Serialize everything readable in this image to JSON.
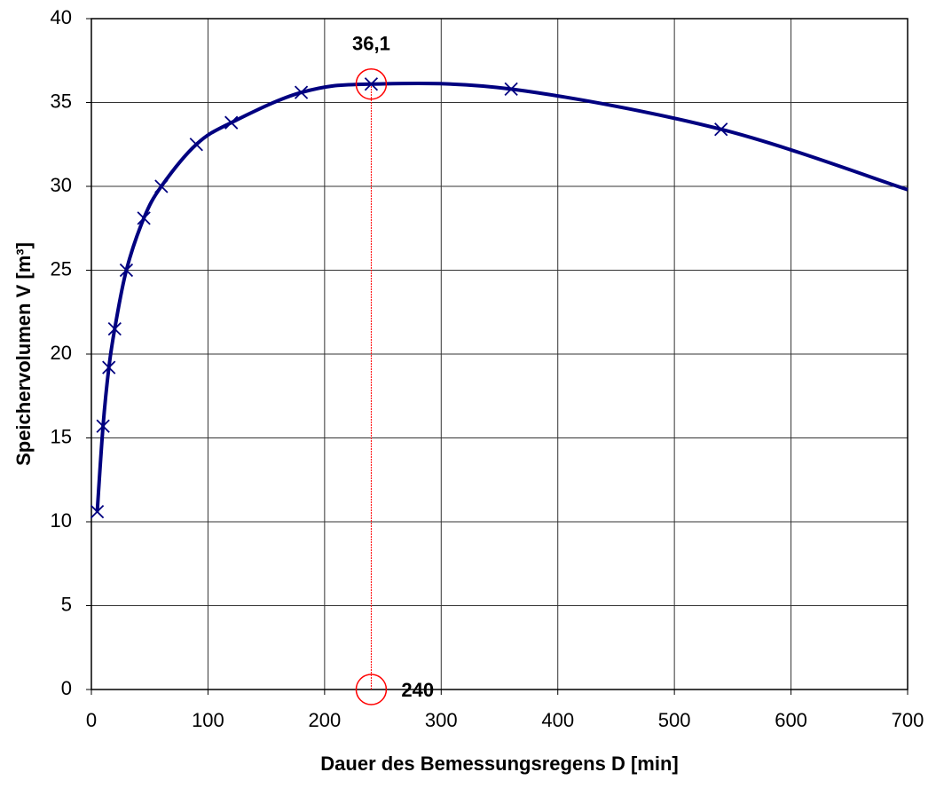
{
  "chart_data": {
    "type": "line",
    "x_label": "Dauer des Bemessungsregens  D [min]",
    "y_label": "Speichervolumen V [m³]",
    "xlim": [
      0,
      700
    ],
    "xticks": [
      0,
      100,
      200,
      300,
      400,
      500,
      600,
      700
    ],
    "ylim": [
      0,
      40
    ],
    "yticks": [
      0,
      5,
      10,
      15,
      20,
      25,
      30,
      35,
      40
    ],
    "grid": true,
    "series": [
      {
        "color": "#000080",
        "style": "line",
        "x": [
          5,
          10,
          15,
          20,
          30,
          45,
          60,
          90,
          120,
          180,
          240,
          360,
          540,
          700
        ],
        "values": [
          10.6,
          15.7,
          19.2,
          21.5,
          25.0,
          28.1,
          30.0,
          32.5,
          33.8,
          35.6,
          36.1,
          35.8,
          33.4,
          29.8
        ]
      },
      {
        "color": "#000080",
        "style": "markers",
        "x": [
          5,
          10,
          15,
          20,
          30,
          45,
          60,
          90,
          120,
          180,
          240,
          360,
          540
        ],
        "values": [
          10.6,
          15.7,
          19.2,
          21.5,
          25.0,
          28.1,
          30.0,
          32.5,
          33.8,
          35.6,
          36.1,
          35.8,
          33.4
        ]
      }
    ],
    "annotations": [
      {
        "x": 240,
        "y": {
          "value": 36.1,
          "label": "36,1"
        },
        "color": "#ff0000"
      },
      {
        "x": {
          "value": 240,
          "label": "240"
        },
        "y": 0,
        "color": "#ff0000"
      }
    ]
  }
}
